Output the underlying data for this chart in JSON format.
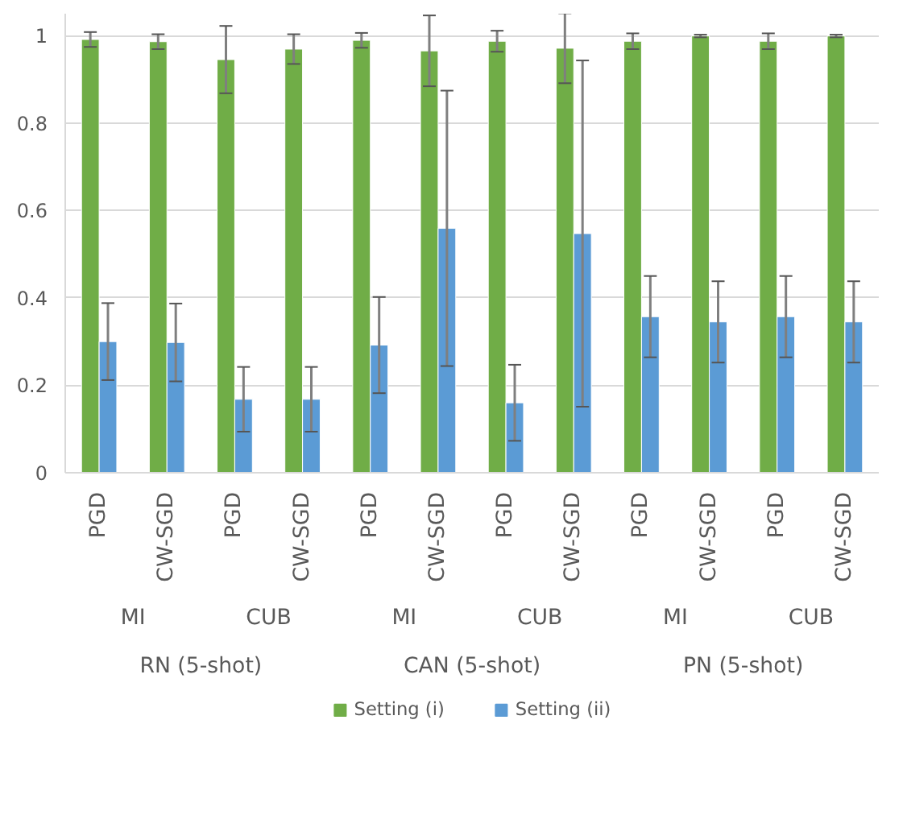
{
  "chart_data": {
    "type": "bar",
    "categories": [
      "PGD",
      "CW-SGD",
      "PGD",
      "CW-SGD",
      "PGD",
      "CW-SGD",
      "PGD",
      "CW-SGD",
      "PGD",
      "CW-SGD",
      "PGD",
      "CW-SGD"
    ],
    "series": [
      {
        "name": "Setting (i)",
        "color": "#70ad47",
        "values": [
          0.991,
          0.986,
          0.945,
          0.969,
          0.989,
          0.965,
          0.987,
          0.971,
          0.987,
          0.999,
          0.987,
          0.999
        ],
        "errors": [
          0.017,
          0.017,
          0.077,
          0.034,
          0.017,
          0.081,
          0.024,
          0.08,
          0.018,
          0.003,
          0.018,
          0.003
        ]
      },
      {
        "name": "Setting (ii)",
        "color": "#5b9bd5",
        "values": [
          0.3,
          0.298,
          0.168,
          0.168,
          0.292,
          0.559,
          0.16,
          0.547,
          0.357,
          0.345,
          0.357,
          0.345
        ],
        "errors": [
          0.088,
          0.089,
          0.074,
          0.074,
          0.11,
          0.315,
          0.087,
          0.396,
          0.093,
          0.093,
          0.093,
          0.093
        ]
      }
    ],
    "annotations": [
      "MI",
      "CUB",
      "MI",
      "CUB",
      "MI",
      "CUB",
      "RN (5-shot)",
      "CAN (5-shot)",
      "PN (5-shot)"
    ],
    "ylim": [
      0,
      1.05
    ],
    "yticks": [
      0,
      0.2,
      0.4,
      0.6,
      0.8,
      1
    ],
    "grid": "y",
    "legend": "bottom"
  }
}
